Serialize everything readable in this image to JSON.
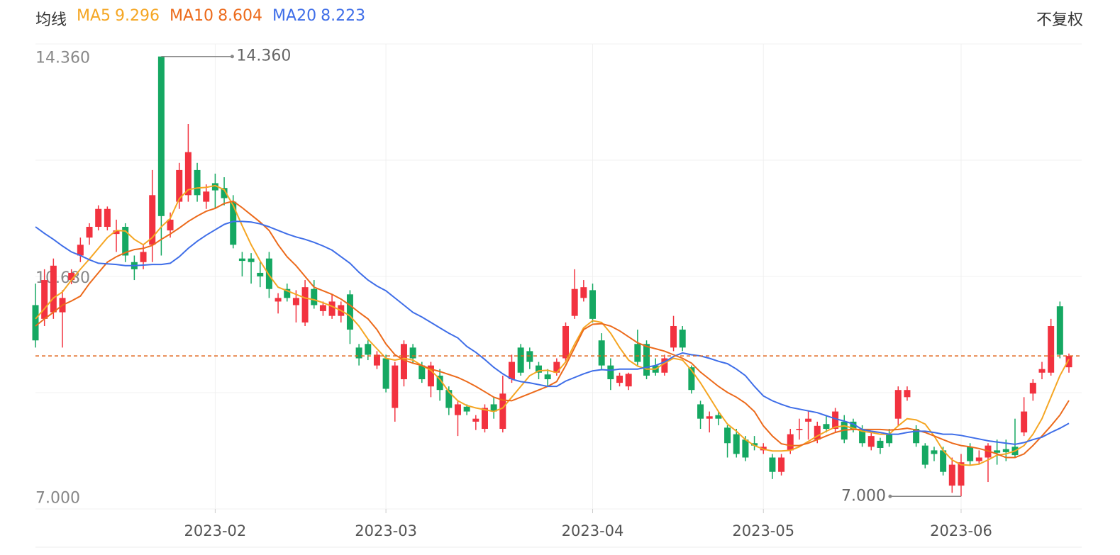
{
  "chart_data": {
    "type": "candlestick",
    "legend_title": "均线",
    "adjust_mode": "不复权",
    "up_color": "#f2323f",
    "down_color": "#15a862",
    "ylim": [
      6.79,
      14.57
    ],
    "yticks": [
      {
        "value": 14.36,
        "label": "14.360"
      },
      {
        "value": 10.68,
        "label": "10.680"
      },
      {
        "value": 7.0,
        "label": "7.000"
      }
    ],
    "annotations": {
      "max": "14.360",
      "min": "7.000"
    },
    "categories": [
      null,
      null,
      null,
      null,
      null,
      null,
      null,
      null,
      null,
      null,
      null,
      null,
      null,
      null,
      null,
      null,
      null,
      null,
      null,
      null,
      "2023-02",
      null,
      null,
      null,
      null,
      null,
      null,
      null,
      null,
      null,
      null,
      null,
      null,
      null,
      null,
      null,
      null,
      null,
      null,
      "2023-03",
      null,
      null,
      null,
      null,
      null,
      null,
      null,
      null,
      null,
      null,
      null,
      null,
      null,
      null,
      null,
      null,
      null,
      null,
      null,
      null,
      null,
      null,
      "2023-04",
      null,
      null,
      null,
      null,
      null,
      null,
      null,
      null,
      null,
      null,
      null,
      null,
      null,
      null,
      null,
      null,
      null,
      null,
      "2023-05",
      null,
      null,
      null,
      null,
      null,
      null,
      null,
      null,
      null,
      null,
      null,
      null,
      null,
      null,
      null,
      null,
      null,
      null,
      null,
      null,
      null,
      "2023-06",
      null,
      null,
      null,
      null,
      null,
      null,
      null,
      null,
      null,
      null,
      null,
      null
    ],
    "ohlc": [
      [
        10.2,
        10.56,
        9.49,
        9.61
      ],
      [
        9.97,
        10.8,
        9.85,
        10.62
      ],
      [
        10.08,
        10.98,
        9.97,
        10.86
      ],
      [
        10.08,
        10.45,
        9.49,
        10.32
      ],
      [
        10.62,
        10.8,
        10.55,
        10.74
      ],
      [
        11.03,
        11.33,
        10.92,
        11.21
      ],
      [
        11.33,
        11.57,
        11.21,
        11.51
      ],
      [
        11.51,
        11.87,
        11.45,
        11.81
      ],
      [
        11.51,
        11.85,
        11.45,
        11.81
      ],
      [
        11.39,
        11.63,
        11.09,
        11.45
      ],
      [
        11.51,
        11.57,
        10.92,
        11.03
      ],
      [
        10.92,
        11.03,
        10.62,
        10.8
      ],
      [
        10.92,
        11.21,
        10.8,
        11.09
      ],
      [
        11.21,
        12.46,
        10.92,
        12.04
      ],
      [
        14.36,
        14.36,
        11.03,
        11.69
      ],
      [
        11.45,
        11.75,
        11.33,
        11.63
      ],
      [
        11.93,
        12.58,
        11.81,
        12.46
      ],
      [
        12.04,
        13.23,
        11.93,
        12.76
      ],
      [
        12.46,
        12.58,
        11.93,
        12.04
      ],
      [
        11.93,
        12.22,
        11.81,
        12.1
      ],
      [
        12.24,
        12.4,
        11.81,
        12.12
      ],
      [
        12.16,
        12.34,
        11.87,
        11.99
      ],
      [
        11.93,
        12.04,
        11.15,
        11.21
      ],
      [
        10.98,
        11.09,
        10.68,
        10.94
      ],
      [
        10.98,
        11.07,
        10.56,
        10.92
      ],
      [
        10.74,
        10.92,
        10.5,
        10.68
      ],
      [
        10.98,
        11.09,
        10.32,
        10.47
      ],
      [
        10.26,
        10.4,
        10.06,
        10.32
      ],
      [
        10.47,
        10.56,
        10.26,
        10.32
      ],
      [
        10.2,
        10.45,
        9.91,
        10.32
      ],
      [
        9.91,
        10.62,
        9.85,
        10.5
      ],
      [
        10.47,
        10.62,
        10.14,
        10.2
      ],
      [
        10.1,
        10.26,
        10.02,
        10.2
      ],
      [
        10.02,
        10.38,
        9.97,
        10.26
      ],
      [
        10.02,
        10.26,
        9.91,
        10.2
      ],
      [
        10.38,
        10.45,
        9.55,
        9.79
      ],
      [
        9.49,
        9.55,
        9.19,
        9.31
      ],
      [
        9.55,
        9.61,
        9.28,
        9.37
      ],
      [
        9.19,
        9.43,
        9.13,
        9.37
      ],
      [
        9.31,
        9.37,
        8.74,
        8.8
      ],
      [
        8.48,
        9.25,
        8.25,
        9.19
      ],
      [
        8.96,
        9.61,
        8.84,
        9.55
      ],
      [
        9.49,
        9.55,
        9.22,
        9.31
      ],
      [
        9.19,
        9.25,
        8.9,
        8.96
      ],
      [
        8.84,
        9.25,
        8.66,
        9.19
      ],
      [
        9.02,
        9.13,
        8.6,
        8.78
      ],
      [
        8.78,
        8.84,
        8.36,
        8.48
      ],
      [
        8.36,
        8.6,
        8.01,
        8.54
      ],
      [
        8.5,
        8.54,
        8.36,
        8.42
      ],
      [
        8.25,
        8.36,
        8.11,
        8.3
      ],
      [
        8.13,
        8.54,
        8.07,
        8.48
      ],
      [
        8.54,
        8.66,
        8.3,
        8.42
      ],
      [
        8.13,
        9.02,
        8.07,
        8.72
      ],
      [
        8.96,
        9.37,
        8.9,
        9.25
      ],
      [
        9.49,
        9.55,
        9.02,
        9.07
      ],
      [
        9.43,
        9.49,
        9.13,
        9.25
      ],
      [
        9.19,
        9.25,
        8.96,
        9.07
      ],
      [
        9.04,
        9.13,
        8.84,
        8.96
      ],
      [
        9.07,
        9.31,
        9.02,
        9.25
      ],
      [
        9.31,
        9.91,
        9.25,
        9.85
      ],
      [
        10.02,
        10.8,
        9.97,
        10.47
      ],
      [
        10.32,
        10.62,
        10.26,
        10.5
      ],
      [
        10.45,
        10.56,
        9.91,
        9.97
      ],
      [
        9.61,
        9.73,
        9.13,
        9.19
      ],
      [
        9.19,
        9.31,
        8.78,
        8.96
      ],
      [
        8.9,
        9.07,
        8.84,
        9.02
      ],
      [
        8.84,
        9.07,
        8.78,
        9.05
      ],
      [
        9.55,
        9.79,
        9.19,
        9.25
      ],
      [
        9.55,
        9.61,
        8.96,
        9.02
      ],
      [
        9.19,
        9.31,
        9.02,
        9.07
      ],
      [
        9.07,
        9.37,
        9.02,
        9.31
      ],
      [
        9.49,
        10.02,
        9.43,
        9.85
      ],
      [
        9.79,
        9.85,
        9.43,
        9.49
      ],
      [
        9.16,
        9.19,
        8.72,
        8.78
      ],
      [
        8.54,
        8.6,
        8.13,
        8.3
      ],
      [
        8.3,
        8.42,
        8.07,
        8.34
      ],
      [
        8.36,
        8.42,
        8.19,
        8.3
      ],
      [
        8.15,
        8.19,
        7.65,
        7.89
      ],
      [
        8.04,
        8.13,
        7.65,
        7.71
      ],
      [
        7.95,
        8.01,
        7.59,
        7.65
      ],
      [
        7.89,
        8.01,
        7.77,
        7.85
      ],
      [
        7.77,
        7.89,
        7.71,
        7.83
      ],
      [
        7.65,
        7.71,
        7.29,
        7.41
      ],
      [
        7.41,
        7.71,
        7.35,
        7.65
      ],
      [
        7.77,
        8.13,
        7.71,
        8.04
      ],
      [
        8.11,
        8.3,
        7.95,
        8.13
      ],
      [
        8.25,
        8.42,
        7.95,
        8.3
      ],
      [
        7.95,
        8.25,
        7.89,
        8.18
      ],
      [
        8.21,
        8.36,
        8.07,
        8.13
      ],
      [
        8.13,
        8.48,
        8.07,
        8.42
      ],
      [
        8.25,
        8.36,
        7.89,
        7.95
      ],
      [
        8.25,
        8.3,
        8.07,
        8.13
      ],
      [
        8.13,
        8.19,
        7.83,
        7.89
      ],
      [
        7.83,
        8.07,
        7.77,
        8.01
      ],
      [
        7.93,
        7.98,
        7.71,
        7.81
      ],
      [
        8.04,
        8.13,
        7.83,
        7.89
      ],
      [
        8.3,
        8.84,
        8.19,
        8.78
      ],
      [
        8.66,
        8.84,
        8.6,
        8.78
      ],
      [
        8.13,
        8.19,
        7.83,
        7.89
      ],
      [
        7.85,
        7.89,
        7.47,
        7.53
      ],
      [
        7.77,
        7.83,
        7.59,
        7.71
      ],
      [
        7.77,
        7.83,
        7.35,
        7.41
      ],
      [
        7.18,
        7.65,
        7.06,
        7.53
      ],
      [
        7.18,
        7.71,
        7.0,
        7.57
      ],
      [
        7.83,
        7.89,
        7.53,
        7.59
      ],
      [
        7.59,
        7.77,
        7.53,
        7.65
      ],
      [
        7.65,
        7.89,
        7.24,
        7.85
      ],
      [
        7.77,
        7.95,
        7.53,
        7.73
      ],
      [
        7.79,
        7.95,
        7.59,
        7.74
      ],
      [
        7.83,
        8.3,
        7.65,
        7.69
      ],
      [
        8.07,
        8.66,
        8.01,
        8.42
      ],
      [
        8.72,
        8.96,
        8.6,
        8.9
      ],
      [
        9.07,
        9.25,
        8.96,
        9.13
      ],
      [
        9.07,
        9.97,
        9.02,
        9.85
      ],
      [
        10.18,
        10.26,
        9.31,
        9.37
      ],
      [
        9.16,
        9.39,
        9.07,
        9.35
      ]
    ],
    "series": [
      {
        "name": "MA5",
        "color": "#f5a623",
        "values": [
          9.97,
          10.14,
          10.32,
          10.42,
          10.62,
          10.8,
          10.97,
          11.15,
          11.33,
          11.45,
          11.44,
          11.3,
          11.21,
          11.33,
          11.51,
          11.65,
          11.98,
          12.13,
          12.16,
          12.17,
          12.2,
          12.13,
          11.87,
          11.53,
          11.21,
          10.94,
          10.7,
          10.5,
          10.44,
          10.38,
          10.32,
          10.29,
          10.24,
          10.18,
          10.11,
          10.02,
          9.85,
          9.63,
          9.47,
          9.31,
          9.28,
          9.31,
          9.28,
          9.19,
          9.11,
          8.96,
          8.75,
          8.6,
          8.52,
          8.48,
          8.45,
          8.42,
          8.48,
          8.66,
          8.84,
          9.02,
          9.1,
          9.11,
          9.07,
          9.25,
          9.55,
          9.82,
          9.94,
          9.91,
          9.73,
          9.49,
          9.28,
          9.18,
          9.13,
          9.13,
          9.23,
          9.31,
          9.28,
          9.11,
          8.9,
          8.66,
          8.42,
          8.21,
          8.09,
          7.95,
          7.85,
          7.79,
          7.76,
          7.76,
          7.77,
          7.83,
          7.92,
          8.01,
          8.09,
          8.16,
          8.18,
          8.14,
          8.09,
          8.07,
          8.04,
          8.04,
          8.18,
          8.3,
          8.28,
          8.21,
          8.01,
          7.77,
          7.61,
          7.53,
          7.52,
          7.54,
          7.61,
          7.69,
          7.71,
          7.76,
          7.85,
          8.04,
          8.3,
          8.66,
          9.02,
          9.296
        ]
      },
      {
        "name": "MA10",
        "color": "#ec6a1b",
        "values": [
          9.85,
          9.97,
          10.08,
          10.2,
          10.27,
          10.35,
          10.56,
          10.74,
          10.92,
          11.01,
          11.08,
          11.13,
          11.15,
          11.2,
          11.3,
          11.39,
          11.49,
          11.6,
          11.69,
          11.77,
          11.82,
          11.9,
          11.94,
          11.83,
          11.71,
          11.59,
          11.45,
          11.21,
          11.01,
          10.86,
          10.68,
          10.5,
          10.44,
          10.38,
          10.3,
          10.2,
          10.08,
          9.97,
          9.79,
          9.55,
          9.37,
          9.28,
          9.23,
          9.19,
          9.13,
          9.09,
          9.04,
          8.99,
          8.92,
          8.84,
          8.75,
          8.66,
          8.61,
          8.6,
          8.66,
          8.72,
          8.78,
          8.84,
          8.92,
          9.19,
          9.49,
          9.79,
          9.88,
          9.89,
          9.85,
          9.77,
          9.67,
          9.57,
          9.51,
          9.47,
          9.43,
          9.37,
          9.31,
          9.23,
          9.08,
          8.96,
          8.84,
          8.74,
          8.66,
          8.56,
          8.42,
          8.18,
          8.01,
          7.88,
          7.85,
          7.85,
          7.89,
          7.95,
          8.01,
          8.07,
          8.11,
          8.12,
          8.12,
          8.12,
          8.12,
          8.11,
          8.12,
          8.14,
          8.11,
          8.07,
          8.01,
          7.95,
          7.89,
          7.85,
          7.83,
          7.8,
          7.76,
          7.71,
          7.65,
          7.65,
          7.71,
          7.85,
          8.01,
          8.18,
          8.36,
          8.604
        ]
      },
      {
        "name": "MA20",
        "color": "#3f6ee8",
        "values": [
          11.51,
          11.4,
          11.3,
          11.19,
          11.09,
          11.03,
          10.96,
          10.9,
          10.89,
          10.88,
          10.86,
          10.86,
          10.87,
          10.88,
          10.88,
          10.9,
          11.01,
          11.15,
          11.27,
          11.37,
          11.46,
          11.55,
          11.6,
          11.6,
          11.59,
          11.56,
          11.51,
          11.45,
          11.39,
          11.34,
          11.3,
          11.25,
          11.19,
          11.12,
          11.01,
          10.9,
          10.75,
          10.62,
          10.52,
          10.44,
          10.32,
          10.2,
          10.08,
          10.0,
          9.91,
          9.82,
          9.73,
          9.65,
          9.51,
          9.41,
          9.29,
          9.16,
          9.05,
          8.96,
          8.92,
          8.9,
          8.87,
          8.84,
          8.84,
          8.93,
          8.99,
          9.05,
          9.1,
          9.12,
          9.11,
          9.13,
          9.13,
          9.13,
          9.16,
          9.19,
          9.25,
          9.34,
          9.4,
          9.37,
          9.35,
          9.31,
          9.26,
          9.22,
          9.13,
          9.02,
          8.84,
          8.68,
          8.6,
          8.54,
          8.49,
          8.46,
          8.43,
          8.4,
          8.35,
          8.3,
          8.26,
          8.21,
          8.12,
          8.09,
          8.07,
          8.04,
          8.04,
          8.07,
          8.09,
          8.09,
          8.07,
          8.04,
          8.04,
          8.02,
          7.99,
          7.96,
          7.93,
          7.91,
          7.89,
          7.87,
          7.9,
          7.95,
          7.99,
          8.07,
          8.14,
          8.223
        ]
      }
    ]
  }
}
